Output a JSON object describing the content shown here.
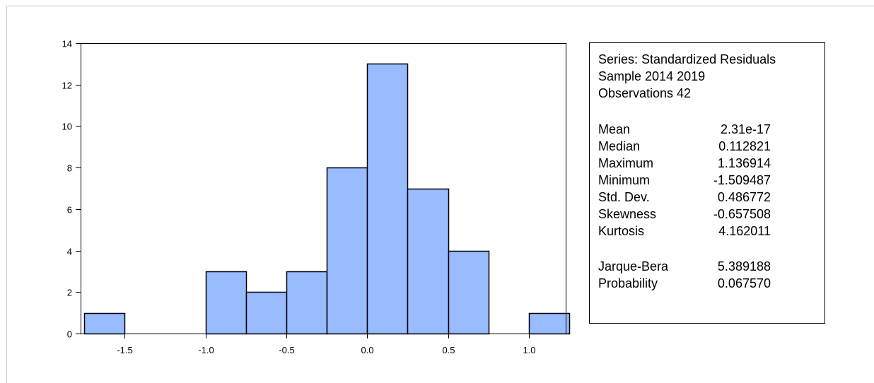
{
  "chart_data": {
    "type": "bar",
    "xlim": [
      -1.75,
      1.25
    ],
    "ylim": [
      0,
      14
    ],
    "xticks": [
      -1.5,
      -1.0,
      -0.5,
      0.0,
      0.5,
      1.0
    ],
    "xtick_labels": [
      "-1.5",
      "-1.0",
      "-0.5",
      "0.0",
      "0.5",
      "1.0"
    ],
    "yticks": [
      0,
      2,
      4,
      6,
      8,
      10,
      12,
      14
    ],
    "ytick_labels": [
      "0",
      "2",
      "4",
      "6",
      "8",
      "10",
      "12",
      "14"
    ],
    "bins": [
      {
        "x0": -1.75,
        "x1": -1.5,
        "count": 1
      },
      {
        "x0": -1.5,
        "x1": -1.25,
        "count": 0
      },
      {
        "x0": -1.25,
        "x1": -1.0,
        "count": 0
      },
      {
        "x0": -1.0,
        "x1": -0.75,
        "count": 3
      },
      {
        "x0": -0.75,
        "x1": -0.5,
        "count": 2
      },
      {
        "x0": -0.5,
        "x1": -0.25,
        "count": 3
      },
      {
        "x0": -0.25,
        "x1": 0.0,
        "count": 8
      },
      {
        "x0": 0.0,
        "x1": 0.25,
        "count": 13
      },
      {
        "x0": 0.25,
        "x1": 0.5,
        "count": 7
      },
      {
        "x0": 0.5,
        "x1": 0.75,
        "count": 4
      },
      {
        "x0": 0.75,
        "x1": 1.0,
        "count": 0
      },
      {
        "x0": 1.0,
        "x1": 1.25,
        "count": 1
      }
    ],
    "bar_color": "#99bbff",
    "grid": false
  },
  "stats": {
    "series_line": "Series: Standardized Residuals",
    "sample_line": "Sample 2014 2019",
    "observations_line": "Observations 42",
    "rows": [
      {
        "label": "Mean",
        "value": "2.31e-17"
      },
      {
        "label": "Median",
        "value": "0.112821"
      },
      {
        "label": "Maximum",
        "value": "1.136914"
      },
      {
        "label": "Minimum",
        "value": "-1.509487"
      },
      {
        "label": "Std. Dev.",
        "value": "0.486772"
      },
      {
        "label": "Skewness",
        "value": "-0.657508"
      },
      {
        "label": "Kurtosis",
        "value": "4.162011"
      }
    ],
    "test_rows": [
      {
        "label": "Jarque-Bera",
        "value": "5.389188"
      },
      {
        "label": "Probability",
        "value": "0.067570"
      }
    ]
  }
}
